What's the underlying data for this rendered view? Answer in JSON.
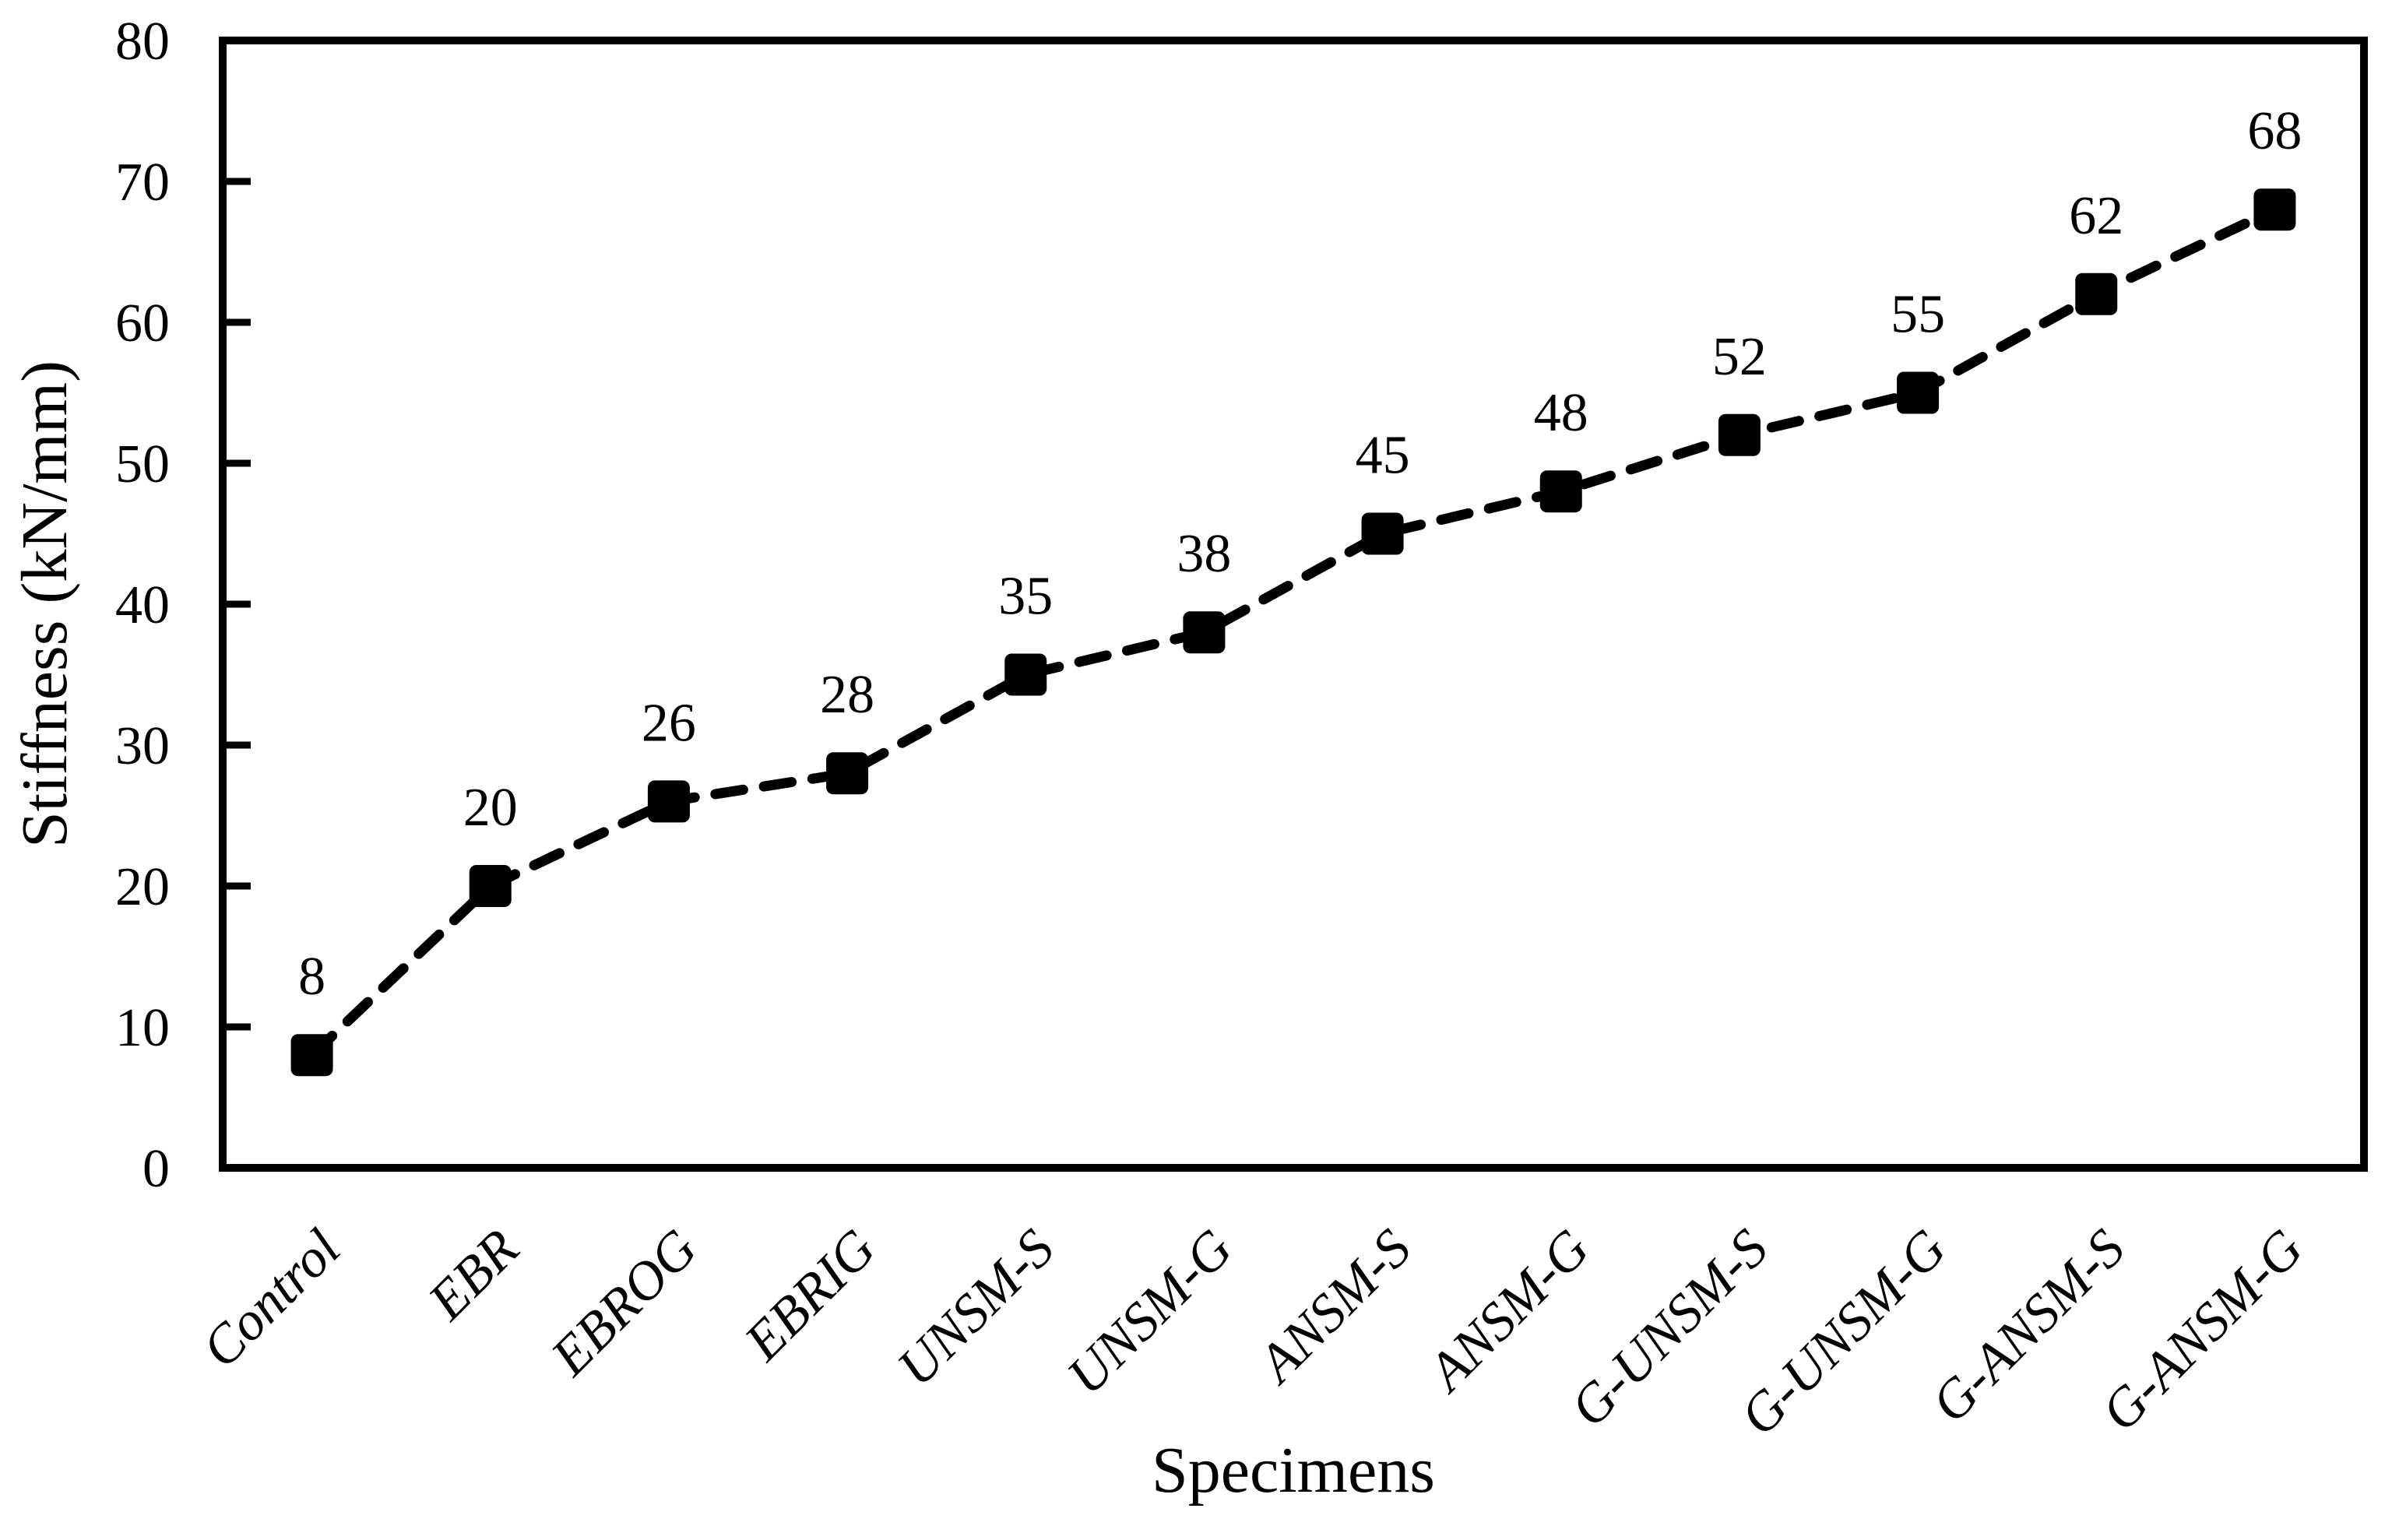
{
  "chart_data": {
    "type": "line",
    "title": "",
    "xlabel": "Specimens",
    "ylabel": "Stiffness (kN/mm)",
    "categories": [
      "Control",
      "EBR",
      "EBROG",
      "EBRIG",
      "UNSM-S",
      "UNSM-G",
      "ANSM-S",
      "ANSM-G",
      "G-UNSM-S",
      "G-UNSM-G",
      "G-ANSM-S",
      "G-ANSM-G"
    ],
    "series": [
      {
        "name": "Stiffness",
        "values": [
          8,
          20,
          26,
          28,
          35,
          38,
          45,
          48,
          52,
          55,
          62,
          68
        ],
        "data_labels": [
          "8",
          "20",
          "26",
          "28",
          "35",
          "38",
          "45",
          "48",
          "52",
          "55",
          "62",
          "68"
        ]
      }
    ],
    "ylim": [
      0,
      80
    ],
    "yticks": [
      0,
      10,
      20,
      30,
      40,
      50,
      60,
      70,
      80
    ],
    "grid": false,
    "legend": "none",
    "line_style": "dashed",
    "marker": "square",
    "colors": {
      "line": "#000000",
      "marker": "#000000",
      "text": "#000000",
      "frame": "#000000",
      "background": "#ffffff"
    }
  }
}
